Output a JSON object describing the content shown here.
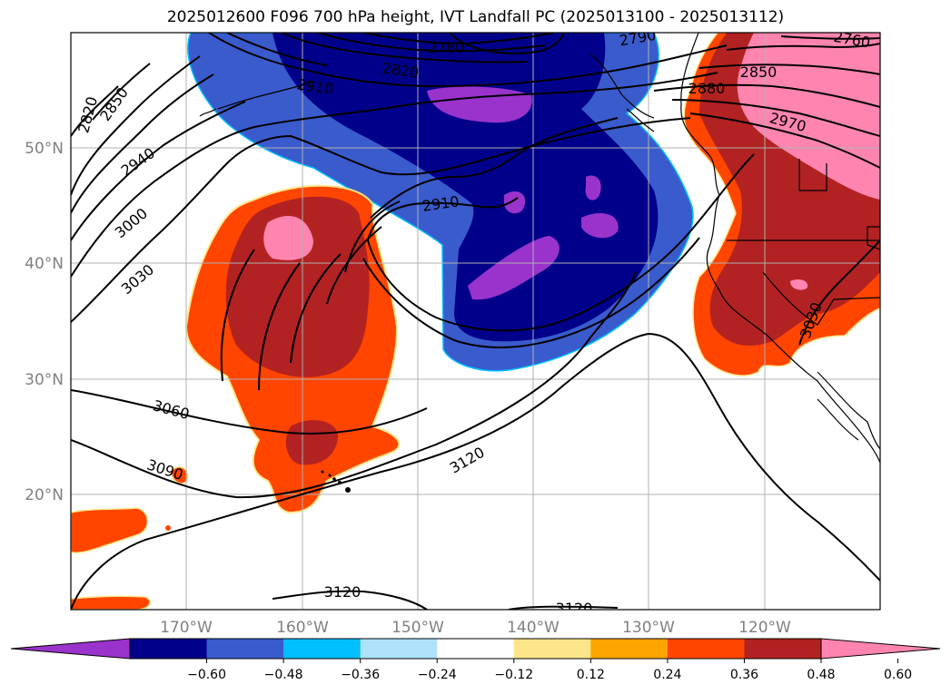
{
  "title": "2025012600 F096 700 hPa height, IVT Landfall PC (2025013100 - 2025013112)",
  "lon_labels": [
    "170°W",
    "160°W",
    "150°W",
    "140°W",
    "130°W",
    "120°W"
  ],
  "lat_labels": [
    "50°N",
    "40°N",
    "30°N",
    "20°N"
  ],
  "contour_labels": [
    "2820",
    "2850",
    "2940",
    "3000",
    "3030",
    "3060",
    "3090",
    "3120",
    "3120",
    "3120",
    "2910",
    "2910",
    "2820",
    "2760",
    "2790",
    "2760",
    "2850",
    "2880",
    "2970",
    "3030"
  ],
  "colorbar": {
    "tick_labels": [
      "−0.60",
      "−0.48",
      "−0.36",
      "−0.24",
      "−0.12",
      "0.12",
      "0.24",
      "0.36",
      "0.48",
      "0.60"
    ],
    "colors": [
      "#9933cc",
      "#00008b",
      "#3a5bcc",
      "#00bfff",
      "#aee2fb",
      "#ffffff",
      "#fde68a",
      "#ffa500",
      "#ff4500",
      "#b22222",
      "#ff85b0"
    ],
    "levels": [
      -0.6,
      -0.48,
      -0.36,
      -0.24,
      -0.12,
      0.12,
      0.24,
      0.36,
      0.48,
      0.6
    ]
  },
  "chart_data": {
    "type": "map",
    "title": "2025012600 F096 700 hPa height, IVT Landfall PC (2025013100 - 2025013112)",
    "contour_variable_levels": [
      2760,
      2790,
      2820,
      2850,
      2880,
      2910,
      2940,
      2970,
      3000,
      3030,
      3060,
      3090,
      3120
    ],
    "shading_levels": [
      -0.6,
      -0.48,
      -0.36,
      -0.24,
      -0.12,
      0.12,
      0.24,
      0.36,
      0.48,
      0.6
    ],
    "lon_range": [
      -180,
      -110
    ],
    "lat_range": [
      10,
      60
    ],
    "grid": true
  }
}
